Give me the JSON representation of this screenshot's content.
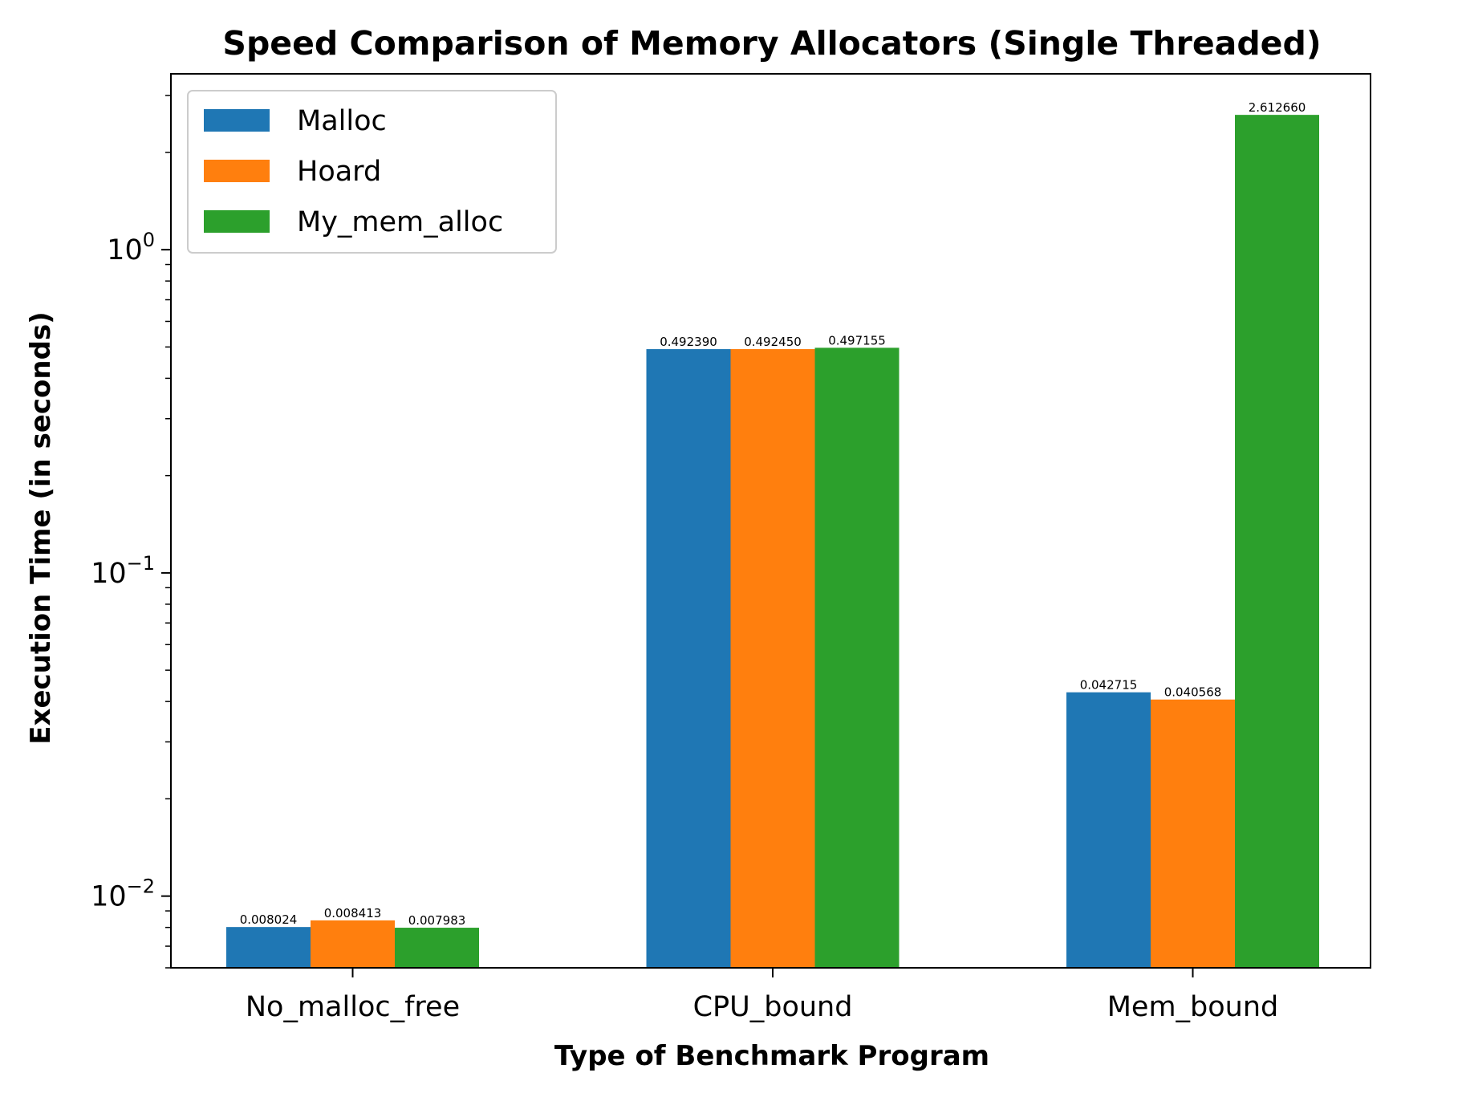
{
  "chart_data": {
    "type": "bar",
    "title": "Speed Comparison of Memory Allocators (Single Threaded)",
    "xlabel": "Type of Benchmark Program",
    "ylabel": "Execution Time (in seconds)",
    "yscale": "log",
    "ylim": [
      0.006,
      3.5
    ],
    "yticks": [
      {
        "value": 0.01,
        "base": "10",
        "exp": "−2"
      },
      {
        "value": 0.1,
        "base": "10",
        "exp": "−1"
      },
      {
        "value": 1,
        "base": "10",
        "exp": "0"
      }
    ],
    "categories": [
      "No_malloc_free",
      "CPU_bound",
      "Mem_bound"
    ],
    "series": [
      {
        "name": "Malloc",
        "color": "#1f77b4",
        "values": [
          0.008024,
          0.49239,
          0.042715
        ],
        "labels": [
          "0.008024",
          "0.492390",
          "0.042715"
        ]
      },
      {
        "name": "Hoard",
        "color": "#ff7f0e",
        "values": [
          0.008413,
          0.49245,
          0.040568
        ],
        "labels": [
          "0.008413",
          "0.492450",
          "0.040568"
        ]
      },
      {
        "name": "My_mem_alloc",
        "color": "#2ca02c",
        "values": [
          0.007983,
          0.497155,
          2.61266
        ],
        "labels": [
          "0.007983",
          "0.497155",
          "2.612660"
        ]
      }
    ],
    "legend": {
      "position": "top-left"
    },
    "grid": false
  }
}
